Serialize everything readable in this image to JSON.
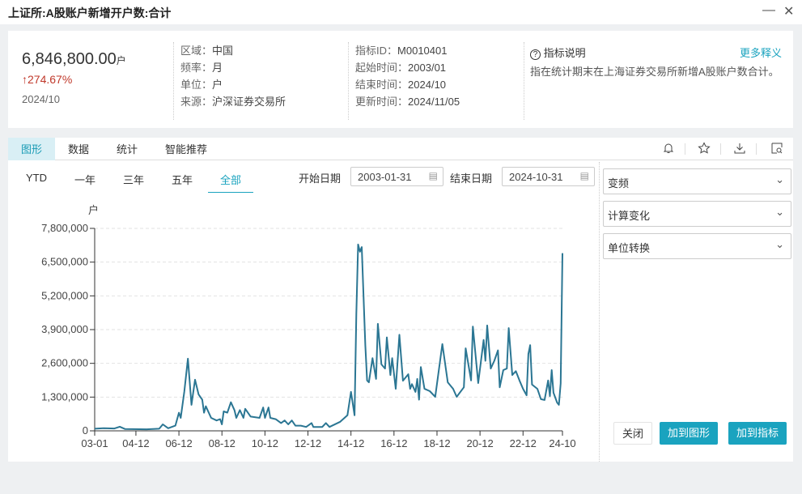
{
  "window": {
    "title": "上证所:A股账户新增开户数:合计",
    "minimize": "—",
    "close": "✕"
  },
  "summary": {
    "value": "6,846,800.00",
    "unit": "户",
    "change": "274.67%",
    "change_arrow": "↑",
    "date": "2024/10"
  },
  "meta1": [
    {
      "k": "区域",
      "v": "中国"
    },
    {
      "k": "频率",
      "v": "月"
    },
    {
      "k": "单位",
      "v": "户"
    },
    {
      "k": "来源",
      "v": "沪深证券交易所"
    }
  ],
  "meta2": [
    {
      "k": "指标ID",
      "v": "M0010401"
    },
    {
      "k": "起始时间",
      "v": "2003/01"
    },
    {
      "k": "结束时间",
      "v": "2024/10"
    },
    {
      "k": "更新时间",
      "v": "2024/11/05"
    }
  ],
  "description": {
    "icon": "question-circle-icon",
    "heading": "指标说明",
    "more": "更多释义",
    "text": "指在统计期末在上海证券交易所新增A股账户数合计。"
  },
  "tabs": [
    {
      "label": "图形",
      "active": true
    },
    {
      "label": "数据"
    },
    {
      "label": "统计"
    },
    {
      "label": "智能推荐"
    }
  ],
  "toolbar_icons": [
    "bell-icon",
    "star-plus-icon",
    "download-icon",
    "search-document-icon"
  ],
  "ranges": [
    {
      "label": "YTD"
    },
    {
      "label": "一年"
    },
    {
      "label": "三年"
    },
    {
      "label": "五年"
    },
    {
      "label": "全部",
      "active": true
    }
  ],
  "start_date": {
    "label": "开始日期",
    "value": "2003-01-31"
  },
  "end_date": {
    "label": "结束日期",
    "value": "2024-10-31"
  },
  "selects": [
    "变频",
    "计算变化",
    "单位转换"
  ],
  "buttons": {
    "close": "关闭",
    "add_chart": "加到图形",
    "add_indicator": "加到指标"
  },
  "colors": {
    "accent": "#1aa3bf",
    "line": "#2b7693",
    "negative_change": "#c0392b"
  },
  "chart_data": {
    "type": "line",
    "ylabel": "户",
    "ylim": [
      0,
      7800000
    ],
    "grid": true,
    "yticks": [
      "0",
      "1,300,000",
      "2,600,000",
      "3,900,000",
      "5,200,000",
      "6,500,000",
      "7,800,000"
    ],
    "xticks": [
      "03-01",
      "04-12",
      "06-12",
      "08-12",
      "10-12",
      "12-12",
      "14-12",
      "16-12",
      "18-12",
      "20-12",
      "22-12",
      "24-10"
    ],
    "points": [
      [
        "2003-01",
        80000
      ],
      [
        "2003-06",
        100000
      ],
      [
        "2003-12",
        90000
      ],
      [
        "2004-03",
        160000
      ],
      [
        "2004-06",
        70000
      ],
      [
        "2005-06",
        60000
      ],
      [
        "2006-01",
        80000
      ],
      [
        "2006-03",
        250000
      ],
      [
        "2006-06",
        100000
      ],
      [
        "2006-10",
        200000
      ],
      [
        "2006-12",
        700000
      ],
      [
        "2007-01",
        500000
      ],
      [
        "2007-03",
        1500000
      ],
      [
        "2007-05",
        2780000
      ],
      [
        "2007-07",
        1000000
      ],
      [
        "2007-09",
        1970000
      ],
      [
        "2007-11",
        1400000
      ],
      [
        "2008-01",
        1200000
      ],
      [
        "2008-02",
        700000
      ],
      [
        "2008-03",
        950000
      ],
      [
        "2008-06",
        500000
      ],
      [
        "2008-09",
        400000
      ],
      [
        "2008-11",
        450000
      ],
      [
        "2008-12",
        250000
      ],
      [
        "2009-01",
        750000
      ],
      [
        "2009-03",
        700000
      ],
      [
        "2009-05",
        1100000
      ],
      [
        "2009-07",
        800000
      ],
      [
        "2009-08",
        500000
      ],
      [
        "2009-10",
        800000
      ],
      [
        "2009-12",
        500000
      ],
      [
        "2010-01",
        850000
      ],
      [
        "2010-04",
        550000
      ],
      [
        "2010-09",
        500000
      ],
      [
        "2010-11",
        900000
      ],
      [
        "2010-12",
        500000
      ],
      [
        "2011-02",
        900000
      ],
      [
        "2011-03",
        500000
      ],
      [
        "2011-06",
        450000
      ],
      [
        "2011-09",
        300000
      ],
      [
        "2011-11",
        400000
      ],
      [
        "2012-01",
        250000
      ],
      [
        "2012-03",
        400000
      ],
      [
        "2012-05",
        200000
      ],
      [
        "2012-08",
        200000
      ],
      [
        "2012-11",
        150000
      ],
      [
        "2013-02",
        300000
      ],
      [
        "2013-03",
        150000
      ],
      [
        "2013-08",
        150000
      ],
      [
        "2013-10",
        300000
      ],
      [
        "2013-12",
        150000
      ],
      [
        "2014-06",
        350000
      ],
      [
        "2014-10",
        600000
      ],
      [
        "2014-12",
        1500000
      ],
      [
        "2015-02",
        600000
      ],
      [
        "2015-03",
        4500000
      ],
      [
        "2015-04",
        7180000
      ],
      [
        "2015-05",
        6900000
      ],
      [
        "2015-06",
        7080000
      ],
      [
        "2015-08",
        3300000
      ],
      [
        "2015-09",
        1940000
      ],
      [
        "2015-10",
        1870000
      ],
      [
        "2015-12",
        2800000
      ],
      [
        "2016-02",
        2000000
      ],
      [
        "2016-03",
        4120000
      ],
      [
        "2016-05",
        2560000
      ],
      [
        "2016-07",
        2400000
      ],
      [
        "2016-08",
        3600000
      ],
      [
        "2016-10",
        2150000
      ],
      [
        "2016-11",
        2800000
      ],
      [
        "2017-01",
        1620000
      ],
      [
        "2017-03",
        3700000
      ],
      [
        "2017-05",
        1930000
      ],
      [
        "2017-08",
        2180000
      ],
      [
        "2017-09",
        1620000
      ],
      [
        "2017-10",
        1800000
      ],
      [
        "2017-12",
        1500000
      ],
      [
        "2018-01",
        2000000
      ],
      [
        "2018-02",
        1200000
      ],
      [
        "2018-03",
        2460000
      ],
      [
        "2018-05",
        1620000
      ],
      [
        "2018-08",
        1530000
      ],
      [
        "2018-11",
        1310000
      ],
      [
        "2019-03",
        3340000
      ],
      [
        "2019-06",
        1870000
      ],
      [
        "2019-09",
        1620000
      ],
      [
        "2019-11",
        1310000
      ],
      [
        "2020-03",
        1680000
      ],
      [
        "2020-04",
        3180000
      ],
      [
        "2020-07",
        1940000
      ],
      [
        "2020-08",
        4020000
      ],
      [
        "2020-11",
        1840000
      ],
      [
        "2021-02",
        3500000
      ],
      [
        "2021-03",
        2700000
      ],
      [
        "2021-04",
        4060000
      ],
      [
        "2021-06",
        2400000
      ],
      [
        "2021-08",
        2700000
      ],
      [
        "2021-10",
        3100000
      ],
      [
        "2021-11",
        1680000
      ],
      [
        "2022-01",
        2340000
      ],
      [
        "2022-03",
        2400000
      ],
      [
        "2022-04",
        3960000
      ],
      [
        "2022-06",
        2150000
      ],
      [
        "2022-08",
        2300000
      ],
      [
        "2022-10",
        1940000
      ],
      [
        "2022-12",
        1620000
      ],
      [
        "2023-02",
        1370000
      ],
      [
        "2023-03",
        2960000
      ],
      [
        "2023-04",
        3300000
      ],
      [
        "2023-05",
        1780000
      ],
      [
        "2023-08",
        1620000
      ],
      [
        "2023-10",
        1220000
      ],
      [
        "2023-12",
        1190000
      ],
      [
        "2024-02",
        1940000
      ],
      [
        "2024-03",
        1340000
      ],
      [
        "2024-04",
        2340000
      ],
      [
        "2024-05",
        1470000
      ],
      [
        "2024-07",
        1090000
      ],
      [
        "2024-08",
        1000000
      ],
      [
        "2024-09",
        1827400
      ],
      [
        "2024-10",
        6846800
      ]
    ]
  }
}
